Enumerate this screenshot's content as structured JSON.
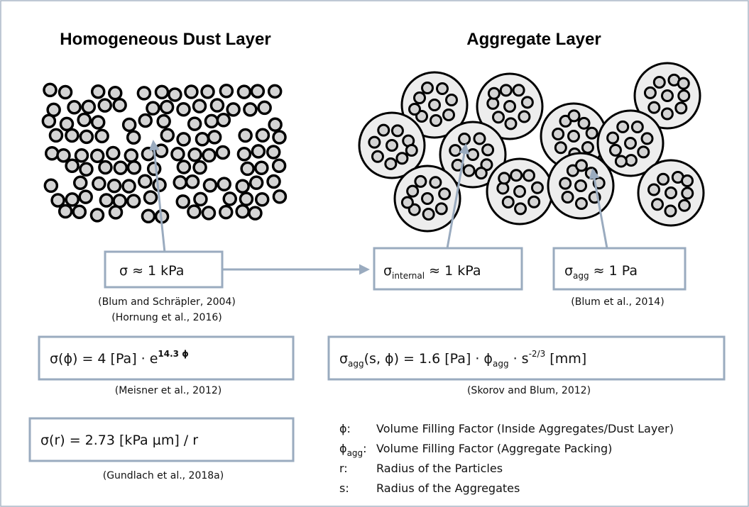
{
  "titles": {
    "left": "Homogeneous Dust Layer",
    "right": "Aggregate Layer"
  },
  "formulas": {
    "dust_strength": [
      "σ ≈ 1 kPa"
    ],
    "internal_strength": [
      "σ",
      "internal",
      " ≈ 1 kPa"
    ],
    "agg_strength": [
      "σ",
      "agg",
      " ≈ 1 Pa"
    ],
    "dust_phi": [
      "σ(ϕ) = 4 [Pa] · e",
      "14.3 ϕ"
    ],
    "agg_phi": [
      "σ",
      "agg",
      "(s, ϕ) = 1.6 [Pa] · ϕ",
      "agg",
      " · s",
      "-2/3",
      " [mm]"
    ],
    "dust_r": [
      "σ(r) = 2.73 [kPa µm] / r"
    ]
  },
  "citations": {
    "blum_2004": "(Blum and Schräpler, 2004)",
    "hornung_2016": "(Hornung et al., 2016)",
    "blum_2014": "(Blum et al., 2014)",
    "meisner_2012": "(Meisner et al., 2012)",
    "skorov_2012": "(Skorov and Blum, 2012)",
    "gundlach_2018": "(Gundlach et al., 2018a)"
  },
  "legend": [
    {
      "key": [
        "ϕ:"
      ],
      "text": "Volume Filling Factor (Inside Aggregates/Dust Layer)"
    },
    {
      "key": [
        "ϕ",
        "agg",
        ":"
      ],
      "text": "Volume Filling Factor (Aggregate Packing)"
    },
    {
      "key": [
        "r:"
      ],
      "text": "Radius of the Particles"
    },
    {
      "key": [
        "s:"
      ],
      "text": "Radius of the Aggregates"
    }
  ]
}
